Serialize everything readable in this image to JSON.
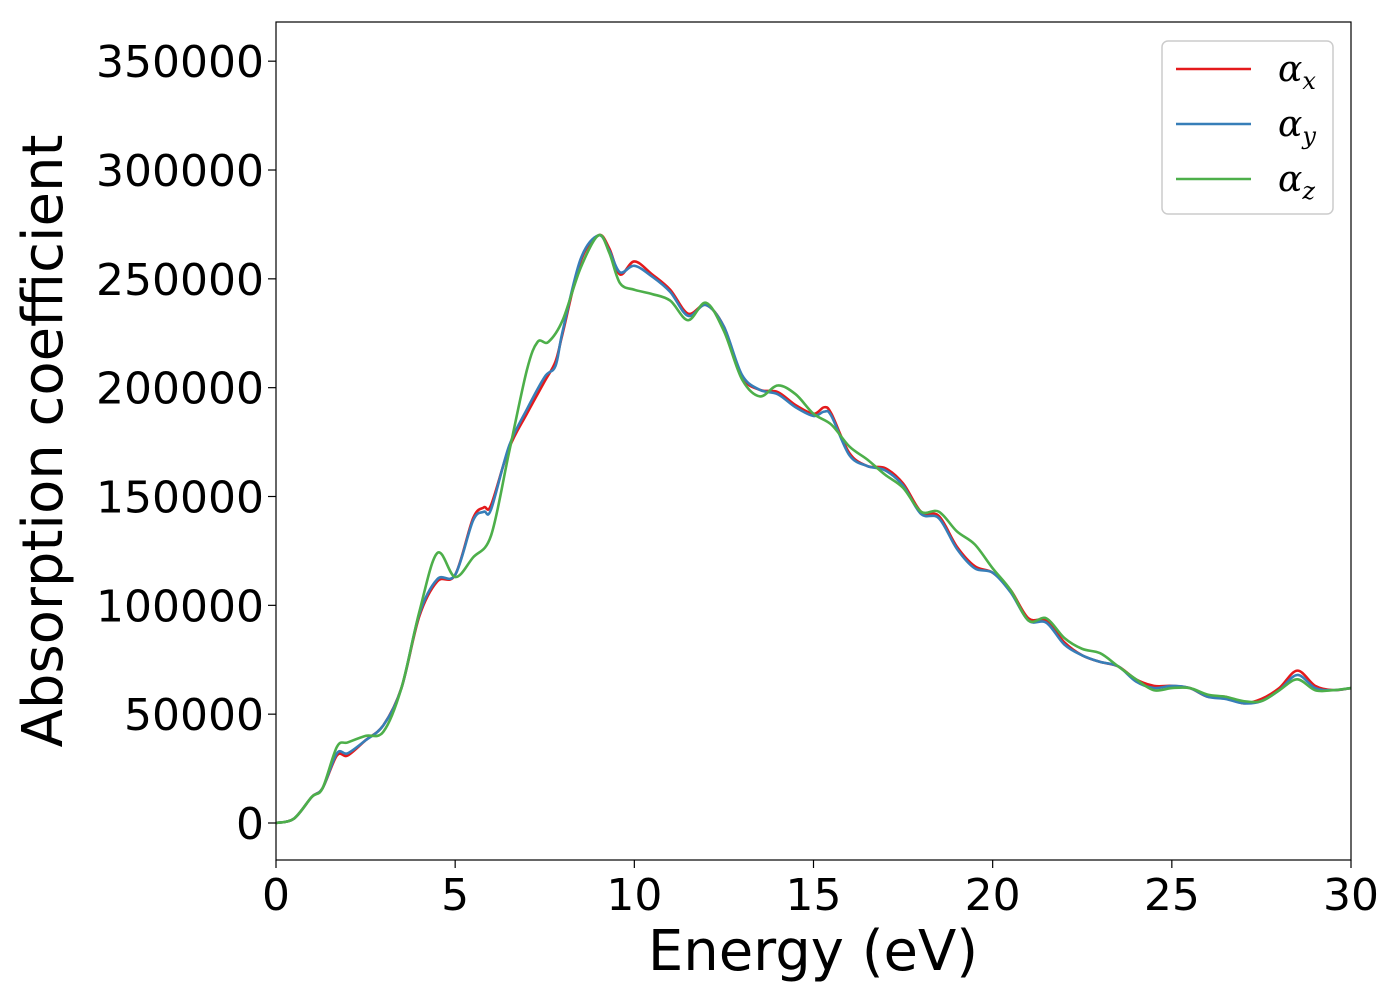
{
  "chart_data": {
    "type": "line",
    "xlabel": "Energy (eV)",
    "ylabel": "Absorption coefficient",
    "xlim": [
      0,
      30
    ],
    "ylim": [
      -17000,
      368000
    ],
    "xticks": [
      0,
      5,
      10,
      15,
      20,
      25,
      30
    ],
    "xtick_labels": [
      "0",
      "5",
      "10",
      "15",
      "20",
      "25",
      "30"
    ],
    "yticks": [
      0,
      50000,
      100000,
      150000,
      200000,
      250000,
      300000,
      350000
    ],
    "ytick_labels": [
      "0",
      "50000",
      "100000",
      "150000",
      "200000",
      "250000",
      "300000",
      "350000"
    ],
    "grid": false,
    "legend_position": "top-right",
    "series": [
      {
        "name": "αx",
        "symbol": "α",
        "subscript": "x",
        "color": "#e41a1c",
        "points": [
          [
            0,
            0
          ],
          [
            0.5,
            2000
          ],
          [
            1,
            12000
          ],
          [
            1.3,
            16000
          ],
          [
            1.7,
            31000
          ],
          [
            2,
            31000
          ],
          [
            2.5,
            38000
          ],
          [
            3,
            45000
          ],
          [
            3.5,
            62000
          ],
          [
            4,
            95000
          ],
          [
            4.5,
            111000
          ],
          [
            5,
            114000
          ],
          [
            5.5,
            140000
          ],
          [
            5.8,
            145000
          ],
          [
            6,
            146000
          ],
          [
            6.5,
            172000
          ],
          [
            7,
            188000
          ],
          [
            7.5,
            203000
          ],
          [
            7.8,
            212000
          ],
          [
            8,
            225000
          ],
          [
            8.5,
            258000
          ],
          [
            9,
            270000
          ],
          [
            9.3,
            264000
          ],
          [
            9.6,
            252000
          ],
          [
            10,
            258000
          ],
          [
            10.5,
            252000
          ],
          [
            11,
            245000
          ],
          [
            11.5,
            234000
          ],
          [
            12,
            238000
          ],
          [
            12.5,
            228000
          ],
          [
            13,
            205000
          ],
          [
            13.5,
            199000
          ],
          [
            14,
            198000
          ],
          [
            14.5,
            192000
          ],
          [
            15,
            188000
          ],
          [
            15.3,
            191000
          ],
          [
            15.5,
            188000
          ],
          [
            16,
            170000
          ],
          [
            16.5,
            164000
          ],
          [
            17,
            163000
          ],
          [
            17.5,
            156000
          ],
          [
            18,
            143000
          ],
          [
            18.5,
            141000
          ],
          [
            19,
            127000
          ],
          [
            19.5,
            118000
          ],
          [
            20,
            115000
          ],
          [
            20.5,
            107000
          ],
          [
            21,
            94000
          ],
          [
            21.5,
            93000
          ],
          [
            22,
            83000
          ],
          [
            22.5,
            77000
          ],
          [
            23,
            74000
          ],
          [
            23.5,
            72000
          ],
          [
            24,
            66000
          ],
          [
            24.5,
            63000
          ],
          [
            25,
            63000
          ],
          [
            25.5,
            62000
          ],
          [
            26,
            58000
          ],
          [
            26.5,
            58000
          ],
          [
            27,
            55000
          ],
          [
            27.5,
            57000
          ],
          [
            28,
            62000
          ],
          [
            28.5,
            70000
          ],
          [
            29,
            63000
          ],
          [
            29.5,
            61000
          ],
          [
            30,
            62000
          ]
        ]
      },
      {
        "name": "αy",
        "symbol": "α",
        "subscript": "y",
        "color": "#377eb8",
        "points": [
          [
            0,
            0
          ],
          [
            0.5,
            2000
          ],
          [
            1,
            12000
          ],
          [
            1.3,
            16000
          ],
          [
            1.7,
            32000
          ],
          [
            2,
            32000
          ],
          [
            2.5,
            38000
          ],
          [
            3,
            45000
          ],
          [
            3.5,
            62000
          ],
          [
            4,
            96000
          ],
          [
            4.5,
            112000
          ],
          [
            5,
            114000
          ],
          [
            5.5,
            139000
          ],
          [
            5.8,
            143000
          ],
          [
            6,
            144000
          ],
          [
            6.5,
            173000
          ],
          [
            7,
            190000
          ],
          [
            7.5,
            205000
          ],
          [
            7.8,
            210000
          ],
          [
            8,
            226000
          ],
          [
            8.5,
            259000
          ],
          [
            9,
            270000
          ],
          [
            9.3,
            263000
          ],
          [
            9.6,
            253000
          ],
          [
            10,
            256000
          ],
          [
            10.5,
            251000
          ],
          [
            11,
            244000
          ],
          [
            11.5,
            233000
          ],
          [
            12,
            238000
          ],
          [
            12.5,
            228000
          ],
          [
            13,
            206000
          ],
          [
            13.5,
            199000
          ],
          [
            14,
            197000
          ],
          [
            14.5,
            191000
          ],
          [
            15,
            187000
          ],
          [
            15.3,
            189000
          ],
          [
            15.5,
            187000
          ],
          [
            16,
            169000
          ],
          [
            16.5,
            164000
          ],
          [
            17,
            162000
          ],
          [
            17.5,
            155000
          ],
          [
            18,
            142000
          ],
          [
            18.5,
            140000
          ],
          [
            19,
            126000
          ],
          [
            19.5,
            117000
          ],
          [
            20,
            115000
          ],
          [
            20.5,
            106000
          ],
          [
            21,
            93000
          ],
          [
            21.5,
            92000
          ],
          [
            22,
            82000
          ],
          [
            22.5,
            77000
          ],
          [
            23,
            74000
          ],
          [
            23.5,
            72000
          ],
          [
            24,
            65000
          ],
          [
            24.5,
            62000
          ],
          [
            25,
            63000
          ],
          [
            25.5,
            62000
          ],
          [
            26,
            58000
          ],
          [
            26.5,
            57000
          ],
          [
            27,
            55000
          ],
          [
            27.5,
            56000
          ],
          [
            28,
            61000
          ],
          [
            28.5,
            68000
          ],
          [
            29,
            62000
          ],
          [
            29.5,
            61000
          ],
          [
            30,
            62000
          ]
        ]
      },
      {
        "name": "αz",
        "symbol": "α",
        "subscript": "z",
        "color": "#4daf4a",
        "points": [
          [
            0,
            0
          ],
          [
            0.5,
            2000
          ],
          [
            1,
            12000
          ],
          [
            1.3,
            16000
          ],
          [
            1.7,
            35000
          ],
          [
            2,
            37000
          ],
          [
            2.5,
            40000
          ],
          [
            3,
            42000
          ],
          [
            3.5,
            62000
          ],
          [
            4,
            97000
          ],
          [
            4.5,
            124000
          ],
          [
            5,
            113000
          ],
          [
            5.5,
            122000
          ],
          [
            6,
            132000
          ],
          [
            6.5,
            170000
          ],
          [
            7,
            208000
          ],
          [
            7.3,
            221000
          ],
          [
            7.6,
            221000
          ],
          [
            8,
            231000
          ],
          [
            8.5,
            255000
          ],
          [
            9,
            270000
          ],
          [
            9.3,
            262000
          ],
          [
            9.6,
            248000
          ],
          [
            10,
            245000
          ],
          [
            10.5,
            243000
          ],
          [
            11,
            240000
          ],
          [
            11.5,
            231000
          ],
          [
            12,
            239000
          ],
          [
            12.5,
            226000
          ],
          [
            13,
            204000
          ],
          [
            13.5,
            196000
          ],
          [
            14,
            201000
          ],
          [
            14.5,
            197000
          ],
          [
            15,
            188000
          ],
          [
            15.5,
            183000
          ],
          [
            16,
            173000
          ],
          [
            16.5,
            167000
          ],
          [
            17,
            160000
          ],
          [
            17.5,
            154000
          ],
          [
            18,
            143000
          ],
          [
            18.5,
            143000
          ],
          [
            19,
            134000
          ],
          [
            19.5,
            128000
          ],
          [
            20,
            117000
          ],
          [
            20.5,
            107000
          ],
          [
            21,
            93000
          ],
          [
            21.5,
            94000
          ],
          [
            22,
            85000
          ],
          [
            22.5,
            80000
          ],
          [
            23,
            78000
          ],
          [
            23.5,
            72000
          ],
          [
            24,
            66000
          ],
          [
            24.5,
            61000
          ],
          [
            25,
            62000
          ],
          [
            25.5,
            62000
          ],
          [
            26,
            59000
          ],
          [
            26.5,
            58000
          ],
          [
            27,
            56000
          ],
          [
            27.5,
            56000
          ],
          [
            28,
            61000
          ],
          [
            28.5,
            66000
          ],
          [
            29,
            61000
          ],
          [
            29.5,
            61000
          ],
          [
            30,
            62000
          ]
        ]
      }
    ]
  }
}
